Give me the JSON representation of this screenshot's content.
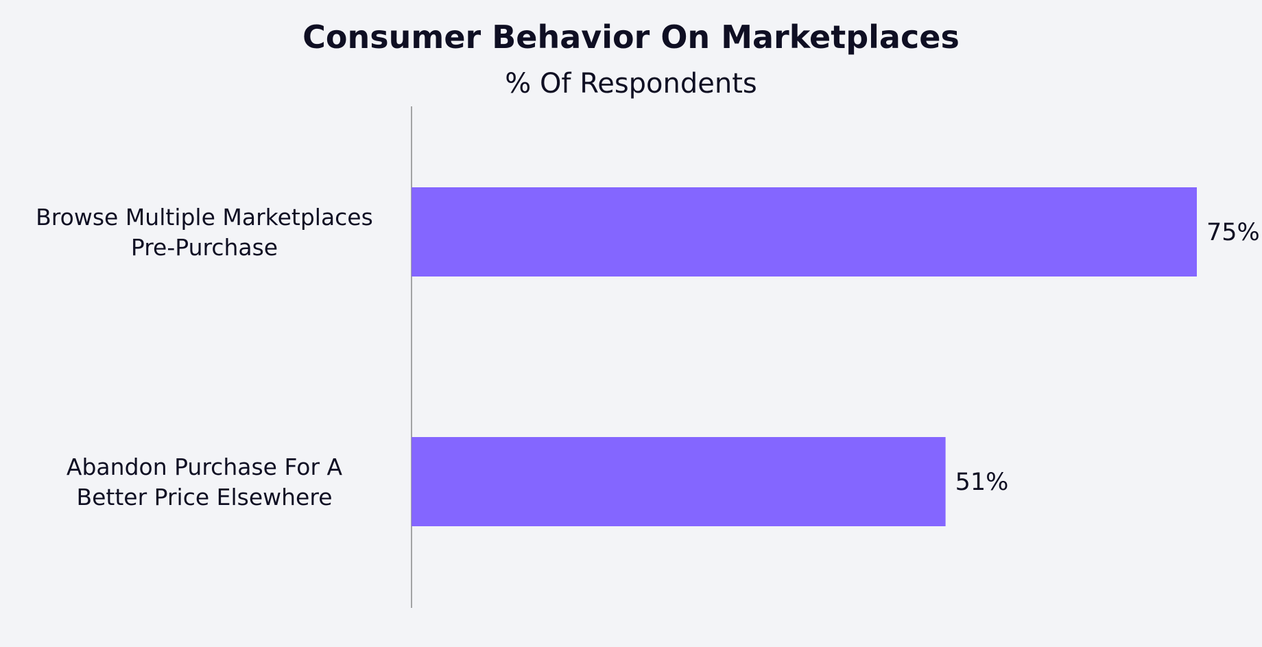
{
  "chart_data": {
    "type": "bar",
    "orientation": "horizontal",
    "title": "Consumer Behavior On Marketplaces",
    "subtitle": "% Of Respondents",
    "categories": [
      [
        "Browse Multiple Marketplaces",
        "Pre-Purchase"
      ],
      [
        "Abandon Purchase For A",
        "Better Price Elsewhere"
      ]
    ],
    "values": [
      75,
      51
    ],
    "value_labels": [
      "75%",
      "51%"
    ],
    "xlim": [
      0,
      75
    ],
    "grid": false,
    "legend": "none",
    "colors": {
      "bar": "#8466ff",
      "axis": "#888888",
      "text": "#0f0f23",
      "background": "#f3f4f7"
    }
  }
}
